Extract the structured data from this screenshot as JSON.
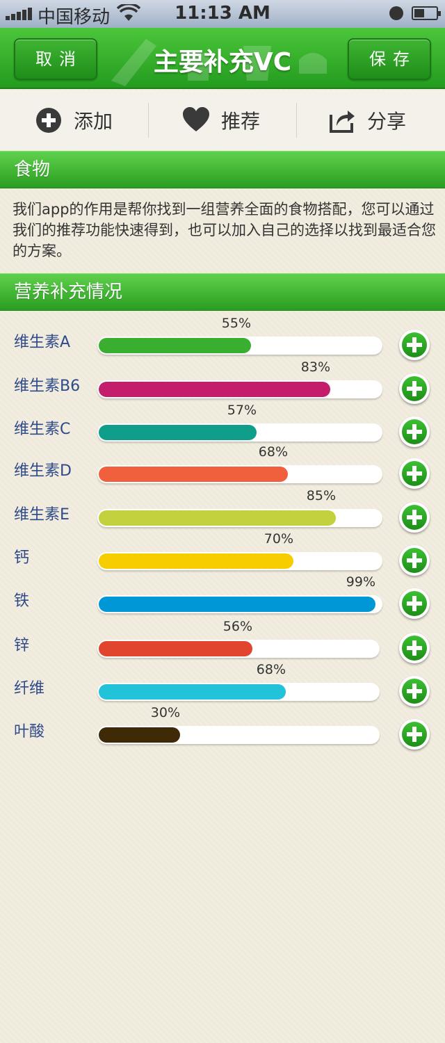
{
  "status_bar": {
    "carrier": "中国移动",
    "time": "11:13 AM"
  },
  "nav": {
    "title": "主要补充VC",
    "cancel_label": "取消",
    "save_label": "保存"
  },
  "toolbar": {
    "add_label": "添加",
    "add_icon": "plus-circle-icon",
    "recommend_label": "推荐",
    "recommend_icon": "heart-icon",
    "share_label": "分享",
    "share_icon": "share-icon"
  },
  "food_section": {
    "title": "食物",
    "description": "我们app的作用是帮你找到一组营养全面的食物搭配，您可以通过我们的推荐功能快速得到，也可以加入自己的选择以找到最适合您的方案。"
  },
  "nutrition_section": {
    "title": "营养补充情况",
    "items": [
      {
        "label": "维生素A",
        "value": 55,
        "percent_text": "55%",
        "color": "#3aae2e"
      },
      {
        "label": "维生素B6",
        "value": 83,
        "percent_text": "83%",
        "color": "#c41d6b"
      },
      {
        "label": "维生素C",
        "value": 57,
        "percent_text": "57%",
        "color": "#0e9e8a"
      },
      {
        "label": "维生素D",
        "value": 68,
        "percent_text": "68%",
        "color": "#f0603c"
      },
      {
        "label": "维生素E",
        "value": 85,
        "percent_text": "85%",
        "color": "#c2d13e"
      },
      {
        "label": "钙",
        "value": 70,
        "percent_text": "70%",
        "color": "#f7cd00"
      },
      {
        "label": "铁",
        "value": 99,
        "percent_text": "99%",
        "color": "#0097d6"
      },
      {
        "label": "锌",
        "value": 56,
        "percent_text": "56%",
        "color": "#e2452e"
      },
      {
        "label": "纤维",
        "value": 68,
        "percent_text": "68%",
        "color": "#22c2d8"
      },
      {
        "label": "叶酸",
        "value": 30,
        "percent_text": "30%",
        "color": "#3f2a08"
      }
    ]
  }
}
